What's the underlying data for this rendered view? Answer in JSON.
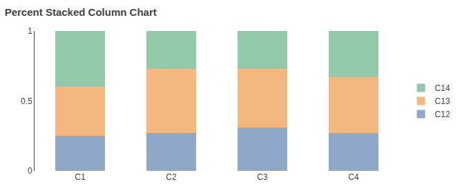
{
  "chart_data": {
    "type": "bar",
    "title": "Percent Stacked Column Chart",
    "categories": [
      "C1",
      "C2",
      "C3",
      "C4"
    ],
    "series": [
      {
        "name": "C12",
        "color": "#8fa8c8",
        "values": [
          0.25,
          0.27,
          0.31,
          0.27
        ]
      },
      {
        "name": "C13",
        "color": "#f5b97f",
        "values": [
          0.35,
          0.46,
          0.42,
          0.4
        ]
      },
      {
        "name": "C14",
        "color": "#92c9a8",
        "values": [
          0.4,
          0.27,
          0.27,
          0.33
        ]
      }
    ],
    "stacked": true,
    "ylim": [
      0,
      1
    ],
    "yticks": [
      0,
      0.5,
      1
    ],
    "grid": false,
    "legend": "right"
  }
}
